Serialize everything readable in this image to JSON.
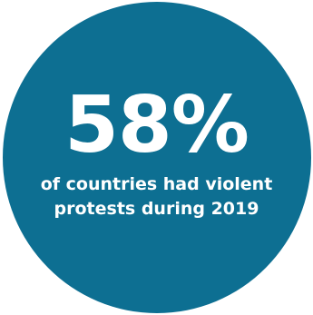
{
  "colors": {
    "circle_fill": "#0d6f92",
    "text": "#ffffff",
    "background": "#ffffff"
  },
  "stat": {
    "value": "58%",
    "caption_lines": [
      "of countries had violent",
      "protests during 2019"
    ]
  }
}
